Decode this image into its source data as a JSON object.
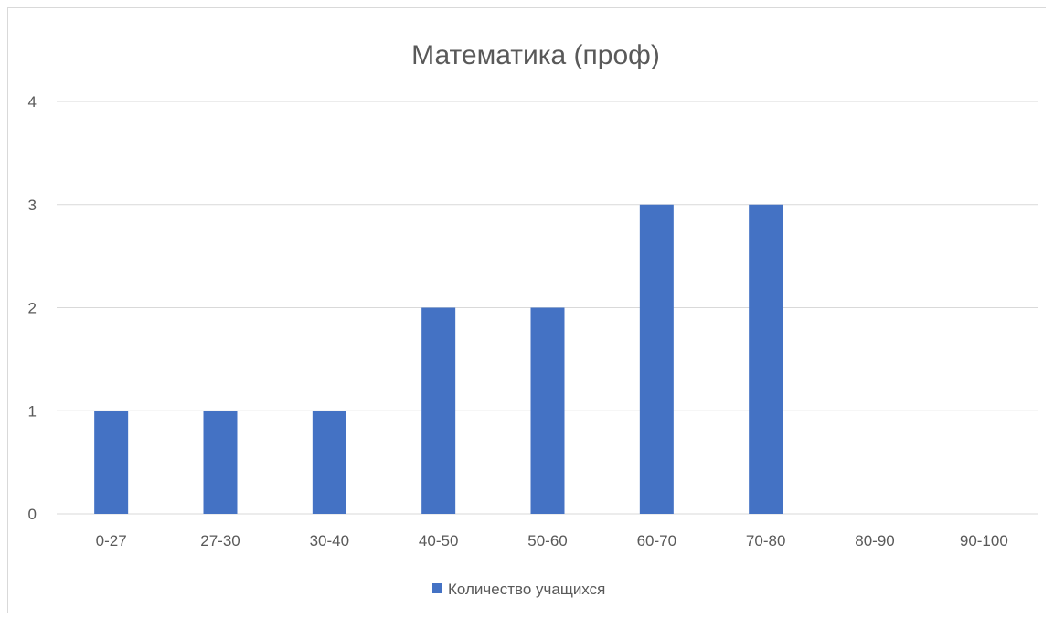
{
  "chart_data": {
    "type": "bar",
    "title": "Математика (проф)",
    "xlabel": "",
    "ylabel": "",
    "categories": [
      "0-27",
      "27-30",
      "30-40",
      "40-50",
      "50-60",
      "60-70",
      "70-80",
      "80-90",
      "90-100"
    ],
    "series": [
      {
        "name": "Количество учащихся",
        "values": [
          1,
          1,
          1,
          2,
          2,
          3,
          3,
          0,
          0
        ],
        "color": "#4472c4"
      }
    ],
    "ylim": [
      0,
      4
    ],
    "yticks": [
      "0",
      "1",
      "2",
      "3",
      "4"
    ],
    "grid": true,
    "gridColor": "#d9d9d9",
    "legend_position": "bottom"
  }
}
